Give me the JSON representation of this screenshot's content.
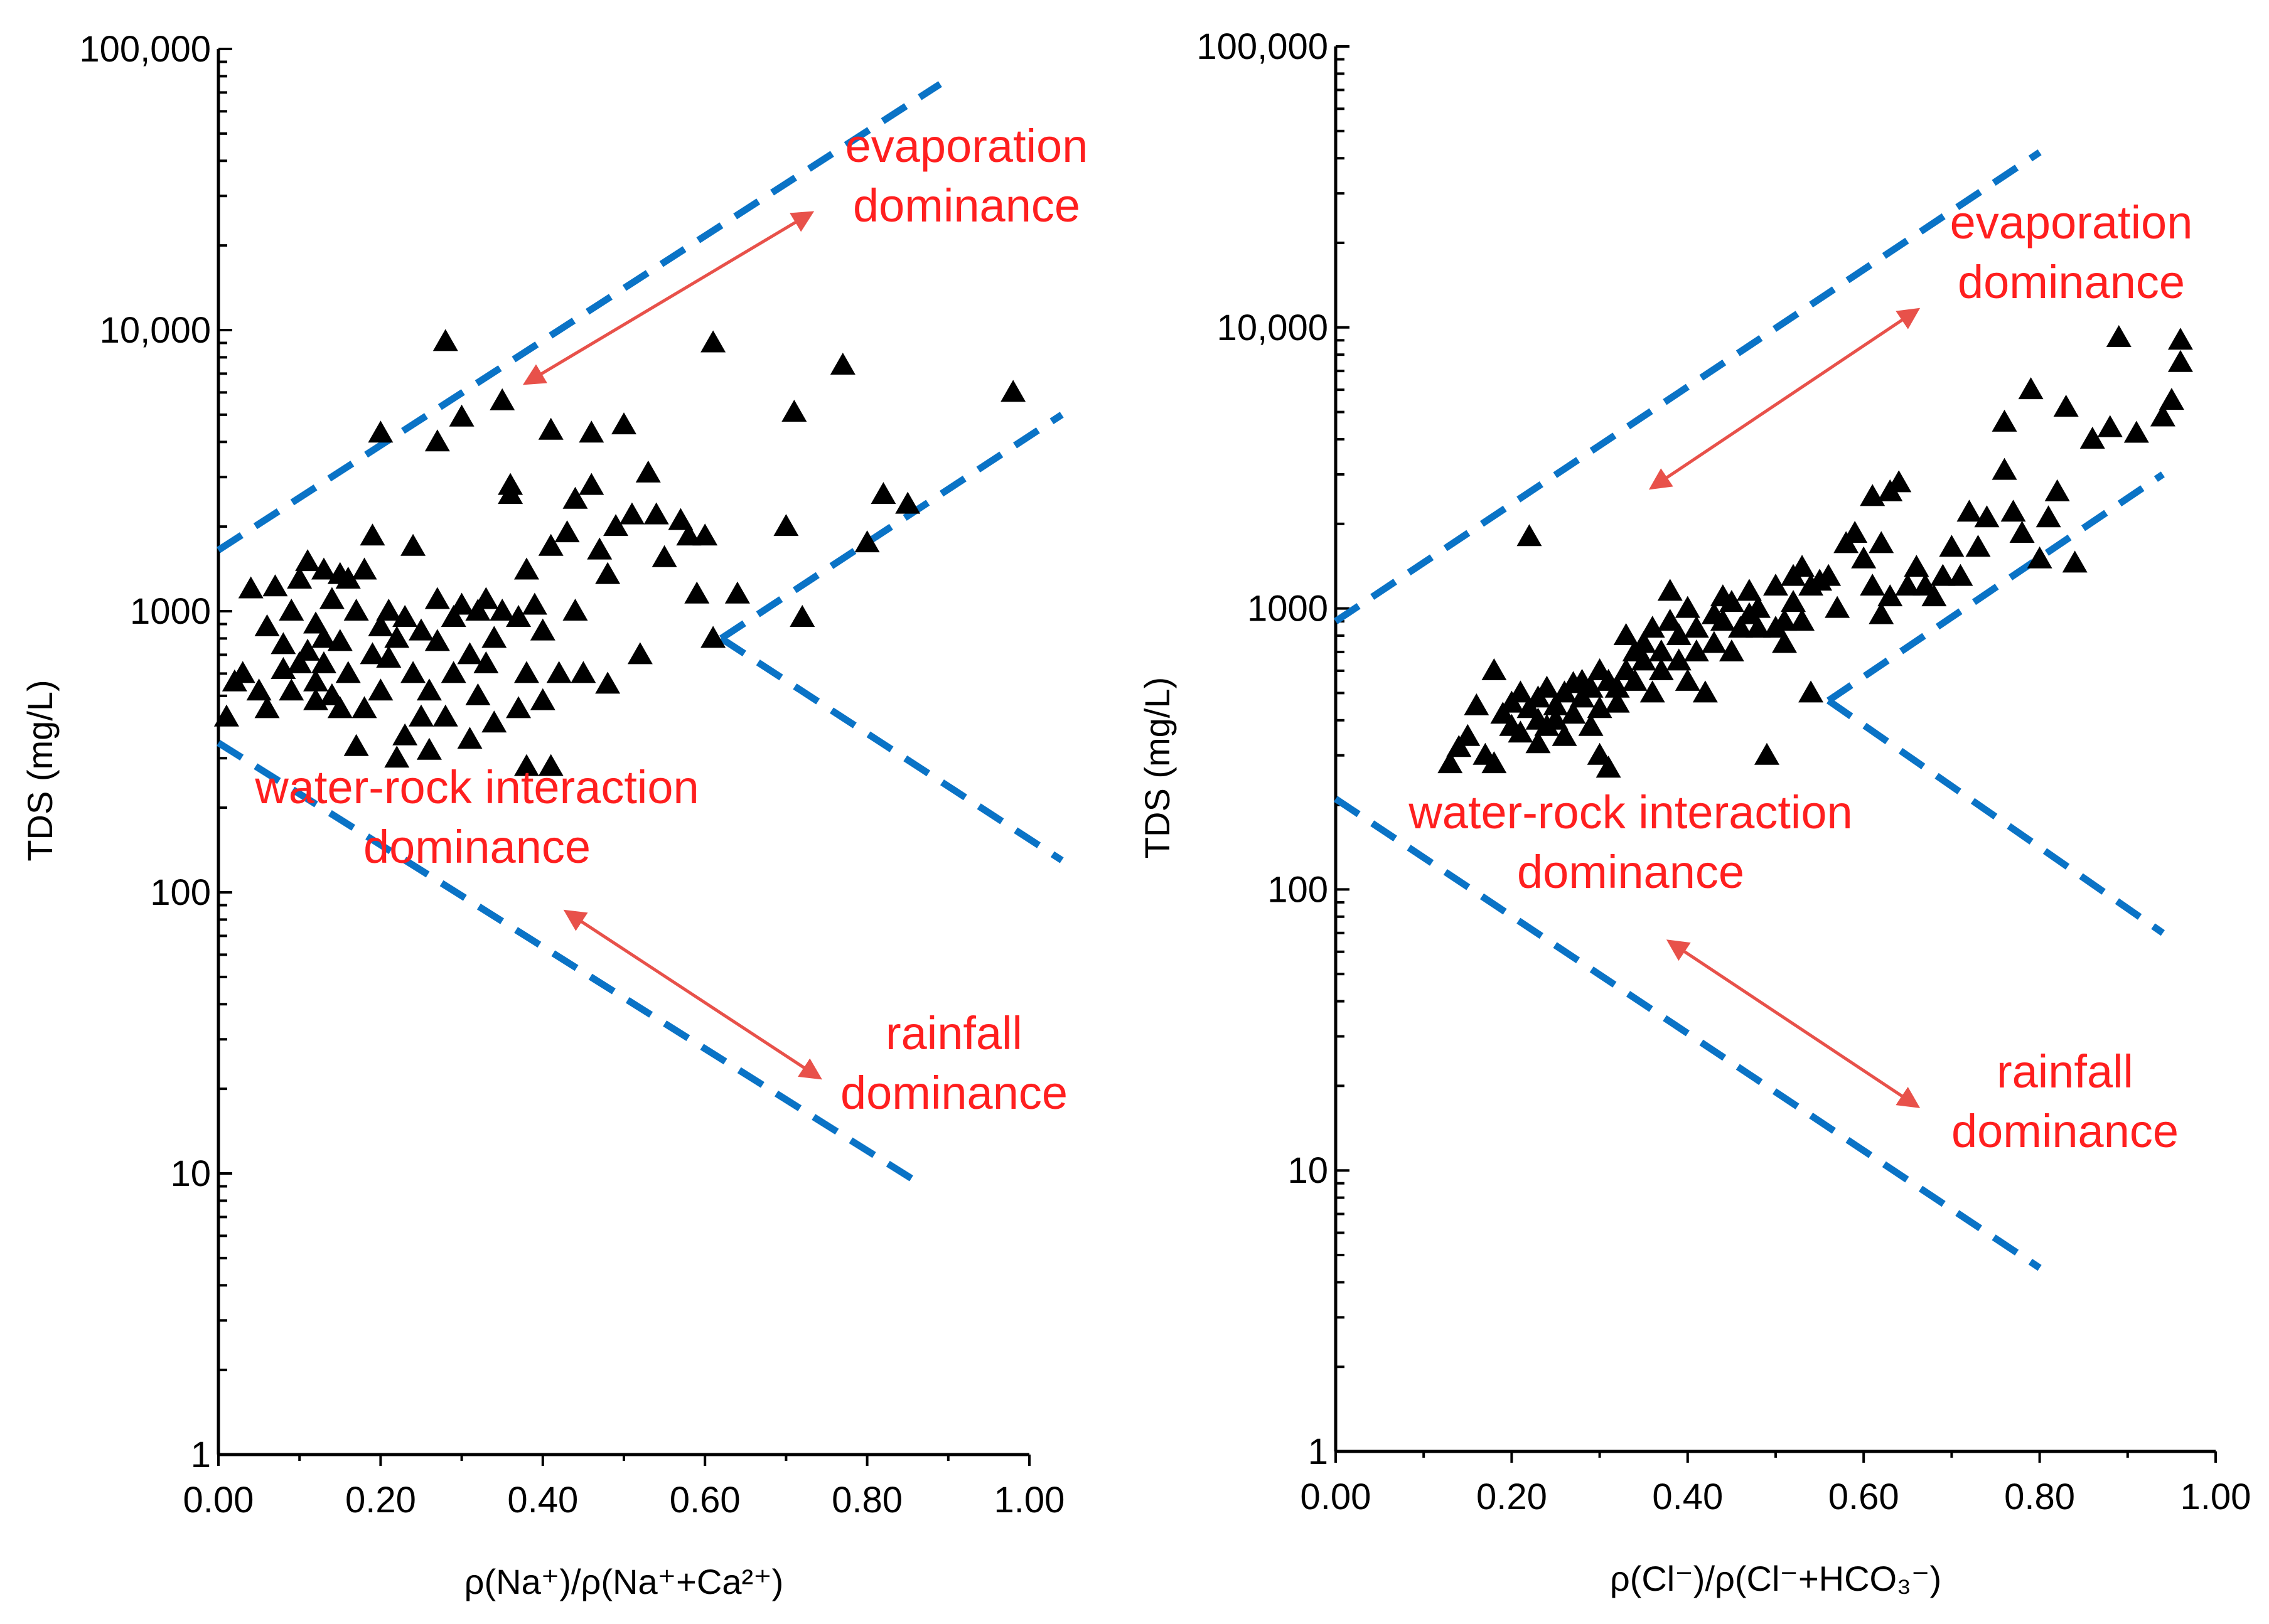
{
  "chart_data": [
    {
      "type": "scatter",
      "xlabel": "ρ(Na⁺)/ρ(Na⁺+Ca²⁺)",
      "ylabel": "TDS (mg/L)",
      "xlim": [
        0,
        1.0
      ],
      "ylim": [
        1,
        100000
      ],
      "yscale": "log",
      "x_tick_labels": [
        "0.00",
        "0.20",
        "0.40",
        "0.60",
        "0.80",
        "1.00"
      ],
      "y_tick_labels": [
        "1",
        "10",
        "100",
        "1000",
        "10,000",
        "100,000"
      ],
      "marker": "triangle",
      "marker_color": "#000000",
      "boundary_color": "#0a73c6",
      "annotation_color": "#ff1f1f",
      "arrow_color": "#e8514a",
      "annotations": {
        "evaporation": [
          "evaporation",
          "dominance"
        ],
        "water_rock": [
          "water-rock interaction",
          "dominance"
        ],
        "rainfall": [
          "rainfall",
          "dominance"
        ]
      },
      "boundaries": [
        {
          "x": [
            0.0,
            0.89
          ],
          "y": [
            1650,
            75000
          ]
        },
        {
          "x": [
            0.62,
            1.04
          ],
          "y": [
            800,
            5000
          ]
        },
        {
          "x": [
            0.62,
            1.04
          ],
          "y": [
            800,
            130
          ]
        },
        {
          "x": [
            0.0,
            0.87
          ],
          "y": [
            340,
            9
          ]
        }
      ],
      "arrows": [
        {
          "from": [
            0.38,
            6500
          ],
          "to": [
            0.73,
            26000
          ]
        },
        {
          "from": [
            0.43,
            85
          ],
          "to": [
            0.74,
            22
          ]
        }
      ],
      "points": [
        [
          0.01,
          420
        ],
        [
          0.02,
          560
        ],
        [
          0.03,
          600
        ],
        [
          0.04,
          1200
        ],
        [
          0.05,
          520
        ],
        [
          0.06,
          880
        ],
        [
          0.06,
          450
        ],
        [
          0.07,
          1220
        ],
        [
          0.08,
          620
        ],
        [
          0.08,
          760
        ],
        [
          0.09,
          520
        ],
        [
          0.09,
          1000
        ],
        [
          0.1,
          1300
        ],
        [
          0.1,
          650
        ],
        [
          0.11,
          720
        ],
        [
          0.11,
          1500
        ],
        [
          0.12,
          560
        ],
        [
          0.12,
          900
        ],
        [
          0.12,
          480
        ],
        [
          0.13,
          1400
        ],
        [
          0.13,
          800
        ],
        [
          0.13,
          650
        ],
        [
          0.14,
          500
        ],
        [
          0.14,
          1100
        ],
        [
          0.15,
          1350
        ],
        [
          0.15,
          780
        ],
        [
          0.15,
          450
        ],
        [
          0.16,
          600
        ],
        [
          0.16,
          1300
        ],
        [
          0.17,
          1000
        ],
        [
          0.17,
          330
        ],
        [
          0.18,
          450
        ],
        [
          0.18,
          1400
        ],
        [
          0.19,
          700
        ],
        [
          0.19,
          1850
        ],
        [
          0.2,
          4300
        ],
        [
          0.2,
          880
        ],
        [
          0.2,
          520
        ],
        [
          0.21,
          680
        ],
        [
          0.21,
          1000
        ],
        [
          0.22,
          800
        ],
        [
          0.22,
          300
        ],
        [
          0.23,
          950
        ],
        [
          0.23,
          360
        ],
        [
          0.24,
          1700
        ],
        [
          0.24,
          600
        ],
        [
          0.25,
          850
        ],
        [
          0.25,
          420
        ],
        [
          0.26,
          320
        ],
        [
          0.26,
          520
        ],
        [
          0.27,
          1100
        ],
        [
          0.27,
          780
        ],
        [
          0.27,
          4000
        ],
        [
          0.28,
          9100
        ],
        [
          0.28,
          420
        ],
        [
          0.29,
          600
        ],
        [
          0.29,
          950
        ],
        [
          0.3,
          1050
        ],
        [
          0.3,
          4900
        ],
        [
          0.31,
          700
        ],
        [
          0.31,
          350
        ],
        [
          0.32,
          1000
        ],
        [
          0.32,
          500
        ],
        [
          0.33,
          650
        ],
        [
          0.33,
          1100
        ],
        [
          0.34,
          400
        ],
        [
          0.34,
          800
        ],
        [
          0.35,
          5600
        ],
        [
          0.35,
          1000
        ],
        [
          0.36,
          2600
        ],
        [
          0.36,
          2800
        ],
        [
          0.37,
          450
        ],
        [
          0.37,
          950
        ],
        [
          0.38,
          1400
        ],
        [
          0.38,
          600
        ],
        [
          0.38,
          280
        ],
        [
          0.39,
          1050
        ],
        [
          0.4,
          850
        ],
        [
          0.4,
          480
        ],
        [
          0.41,
          4400
        ],
        [
          0.41,
          1700
        ],
        [
          0.41,
          280
        ],
        [
          0.42,
          600
        ],
        [
          0.43,
          1900
        ],
        [
          0.44,
          2500
        ],
        [
          0.44,
          1000
        ],
        [
          0.45,
          600
        ],
        [
          0.46,
          2800
        ],
        [
          0.46,
          4300
        ],
        [
          0.47,
          1650
        ],
        [
          0.48,
          1350
        ],
        [
          0.48,
          550
        ],
        [
          0.49,
          2000
        ],
        [
          0.5,
          4600
        ],
        [
          0.51,
          2200
        ],
        [
          0.52,
          700
        ],
        [
          0.53,
          3100
        ],
        [
          0.54,
          2200
        ],
        [
          0.55,
          1550
        ],
        [
          0.57,
          2100
        ],
        [
          0.58,
          1850
        ],
        [
          0.59,
          1150
        ],
        [
          0.6,
          1850
        ],
        [
          0.61,
          9000
        ],
        [
          0.61,
          800
        ],
        [
          0.64,
          1150
        ],
        [
          0.7,
          2000
        ],
        [
          0.71,
          5100
        ],
        [
          0.72,
          950
        ],
        [
          0.77,
          7500
        ],
        [
          0.8,
          1750
        ],
        [
          0.82,
          2600
        ],
        [
          0.85,
          2400
        ],
        [
          0.98,
          6000
        ]
      ]
    },
    {
      "type": "scatter",
      "xlabel": "ρ(Cl⁻)/ρ(Cl⁻+HCO₃⁻)",
      "ylabel": "TDS (mg/L)",
      "xlim": [
        0,
        1.0
      ],
      "ylim": [
        1,
        100000
      ],
      "yscale": "log",
      "x_tick_labels": [
        "0.00",
        "0.20",
        "0.40",
        "0.60",
        "0.80",
        "1.00"
      ],
      "y_tick_labels": [
        "1",
        "10",
        "100",
        "1000",
        "10,000",
        "100,000"
      ],
      "marker": "triangle",
      "marker_color": "#000000",
      "boundary_color": "#0a73c6",
      "annotation_color": "#ff1f1f",
      "arrow_color": "#e8514a",
      "annotations": {
        "evaporation": [
          "evaporation",
          "dominance"
        ],
        "water_rock": [
          "water-rock interaction",
          "dominance"
        ],
        "rainfall": [
          "rainfall",
          "dominance"
        ]
      },
      "boundaries": [
        {
          "x": [
            0.0,
            0.8
          ],
          "y": [
            900,
            42000
          ]
        },
        {
          "x": [
            0.56,
            0.94
          ],
          "y": [
            470,
            3000
          ]
        },
        {
          "x": [
            0.56,
            0.94
          ],
          "y": [
            470,
            70
          ]
        },
        {
          "x": [
            0.0,
            0.8
          ],
          "y": [
            210,
            4.5
          ]
        }
      ],
      "arrows": [
        {
          "from": [
            0.36,
            2700
          ],
          "to": [
            0.66,
            11500
          ]
        },
        {
          "from": [
            0.38,
            65
          ],
          "to": [
            0.66,
            17
          ]
        }
      ],
      "points": [
        [
          0.13,
          280
        ],
        [
          0.14,
          320
        ],
        [
          0.15,
          350
        ],
        [
          0.16,
          450
        ],
        [
          0.17,
          300
        ],
        [
          0.18,
          600
        ],
        [
          0.18,
          280
        ],
        [
          0.19,
          420
        ],
        [
          0.2,
          460
        ],
        [
          0.2,
          380
        ],
        [
          0.21,
          500
        ],
        [
          0.21,
          360
        ],
        [
          0.22,
          440
        ],
        [
          0.22,
          1800
        ],
        [
          0.23,
          400
        ],
        [
          0.23,
          480
        ],
        [
          0.23,
          330
        ],
        [
          0.24,
          520
        ],
        [
          0.24,
          380
        ],
        [
          0.25,
          450
        ],
        [
          0.25,
          400
        ],
        [
          0.26,
          350
        ],
        [
          0.26,
          500
        ],
        [
          0.27,
          540
        ],
        [
          0.27,
          420
        ],
        [
          0.28,
          480
        ],
        [
          0.28,
          550
        ],
        [
          0.29,
          520
        ],
        [
          0.29,
          380
        ],
        [
          0.3,
          440
        ],
        [
          0.3,
          300
        ],
        [
          0.3,
          600
        ],
        [
          0.31,
          550
        ],
        [
          0.31,
          270
        ],
        [
          0.32,
          520
        ],
        [
          0.32,
          460
        ],
        [
          0.33,
          800
        ],
        [
          0.33,
          600
        ],
        [
          0.34,
          700
        ],
        [
          0.34,
          550
        ],
        [
          0.35,
          650
        ],
        [
          0.35,
          750
        ],
        [
          0.36,
          500
        ],
        [
          0.36,
          850
        ],
        [
          0.37,
          700
        ],
        [
          0.37,
          600
        ],
        [
          0.38,
          900
        ],
        [
          0.38,
          1150
        ],
        [
          0.39,
          650
        ],
        [
          0.39,
          800
        ],
        [
          0.4,
          1000
        ],
        [
          0.4,
          550
        ],
        [
          0.41,
          850
        ],
        [
          0.41,
          700
        ],
        [
          0.42,
          500
        ],
        [
          0.43,
          950
        ],
        [
          0.43,
          750
        ],
        [
          0.44,
          900
        ],
        [
          0.44,
          1100
        ],
        [
          0.45,
          1050
        ],
        [
          0.45,
          700
        ],
        [
          0.46,
          850
        ],
        [
          0.47,
          1150
        ],
        [
          0.47,
          950
        ],
        [
          0.48,
          1000
        ],
        [
          0.48,
          850
        ],
        [
          0.49,
          300
        ],
        [
          0.5,
          1200
        ],
        [
          0.5,
          850
        ],
        [
          0.51,
          900
        ],
        [
          0.51,
          750
        ],
        [
          0.52,
          1050
        ],
        [
          0.52,
          1300
        ],
        [
          0.53,
          1400
        ],
        [
          0.53,
          900
        ],
        [
          0.54,
          1200
        ],
        [
          0.54,
          500
        ],
        [
          0.55,
          1250
        ],
        [
          0.56,
          1300
        ],
        [
          0.57,
          1000
        ],
        [
          0.58,
          1700
        ],
        [
          0.59,
          1850
        ],
        [
          0.6,
          1500
        ],
        [
          0.61,
          2500
        ],
        [
          0.61,
          1200
        ],
        [
          0.62,
          1700
        ],
        [
          0.62,
          950
        ],
        [
          0.63,
          2600
        ],
        [
          0.63,
          1100
        ],
        [
          0.64,
          2800
        ],
        [
          0.65,
          1200
        ],
        [
          0.66,
          1400
        ],
        [
          0.67,
          1200
        ],
        [
          0.68,
          1100
        ],
        [
          0.69,
          1300
        ],
        [
          0.7,
          1650
        ],
        [
          0.71,
          1300
        ],
        [
          0.72,
          2200
        ],
        [
          0.73,
          1650
        ],
        [
          0.74,
          2100
        ],
        [
          0.76,
          4600
        ],
        [
          0.76,
          3100
        ],
        [
          0.77,
          2200
        ],
        [
          0.78,
          1850
        ],
        [
          0.79,
          6000
        ],
        [
          0.8,
          1500
        ],
        [
          0.81,
          2100
        ],
        [
          0.82,
          2600
        ],
        [
          0.83,
          5200
        ],
        [
          0.84,
          1450
        ],
        [
          0.86,
          4000
        ],
        [
          0.88,
          4400
        ],
        [
          0.89,
          9200
        ],
        [
          0.91,
          4200
        ],
        [
          0.94,
          4800
        ],
        [
          0.95,
          5500
        ],
        [
          0.96,
          7500
        ],
        [
          0.96,
          9000
        ]
      ]
    }
  ]
}
